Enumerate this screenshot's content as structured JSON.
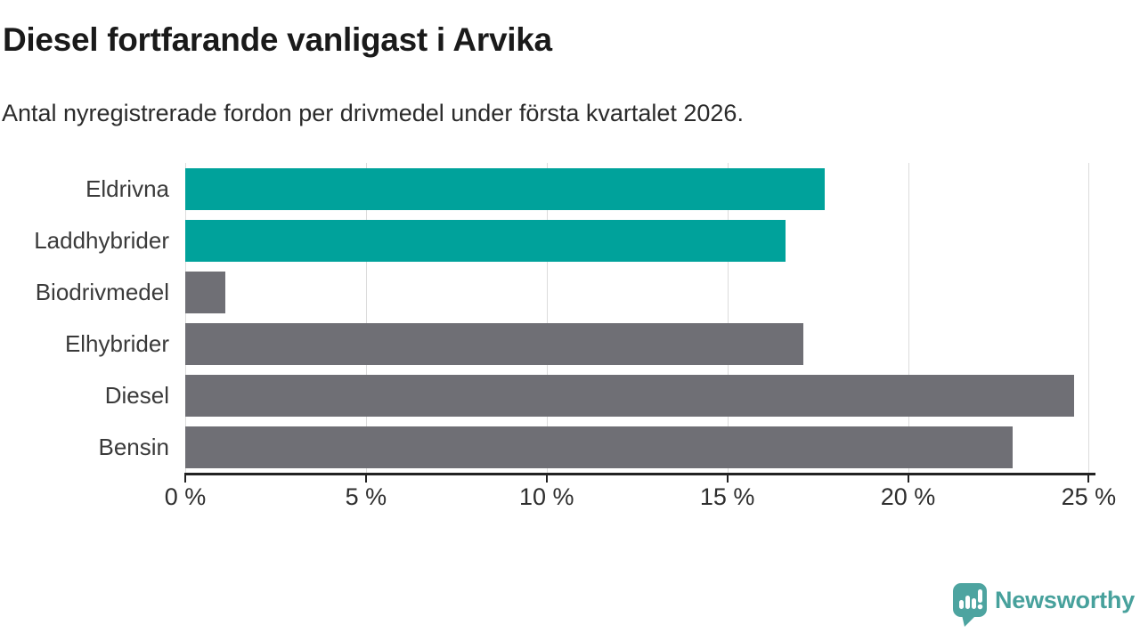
{
  "header": {
    "title": "Diesel fortfarande vanligast i Arvika",
    "subtitle": "Antal nyregistrerade fordon per drivmedel under första kvartalet 2026."
  },
  "chart_data": {
    "type": "bar",
    "orientation": "horizontal",
    "title": "Diesel fortfarande vanligast i Arvika",
    "subtitle": "Antal nyregistrerade fordon per drivmedel under första kvartalet 2026.",
    "categories": [
      "Eldrivna",
      "Laddhybrider",
      "Biodrivmedel",
      "Elhybrider",
      "Diesel",
      "Bensin"
    ],
    "values": [
      17.7,
      16.6,
      1.1,
      17.1,
      24.6,
      22.9
    ],
    "unit": "%",
    "xlim": [
      0,
      25
    ],
    "x_tick_step": 5,
    "x_tick_labels": [
      "0 %",
      "5 %",
      "10 %",
      "15 %",
      "20 %",
      "25 %"
    ],
    "bar_colors": [
      "#00a29b",
      "#00a29b",
      "#6f6f75",
      "#6f6f75",
      "#6f6f75",
      "#6f6f75"
    ],
    "grid": "vertical-only",
    "legend": "none",
    "data_labels": "none"
  },
  "colors": {
    "highlight_bar": "#00a29b",
    "default_bar": "#6f6f75",
    "gridline": "#dcdcdc",
    "axis": "#222222",
    "title_text": "#1a1a1a",
    "subtitle_text": "#2b2b2b",
    "label_text": "#3a3a3a",
    "brand_teal": "#47a19c",
    "background": "#ffffff"
  },
  "branding": {
    "logo_text": "Newsworthy",
    "logo_icon": "bar-chart-speech-bubble-icon"
  }
}
